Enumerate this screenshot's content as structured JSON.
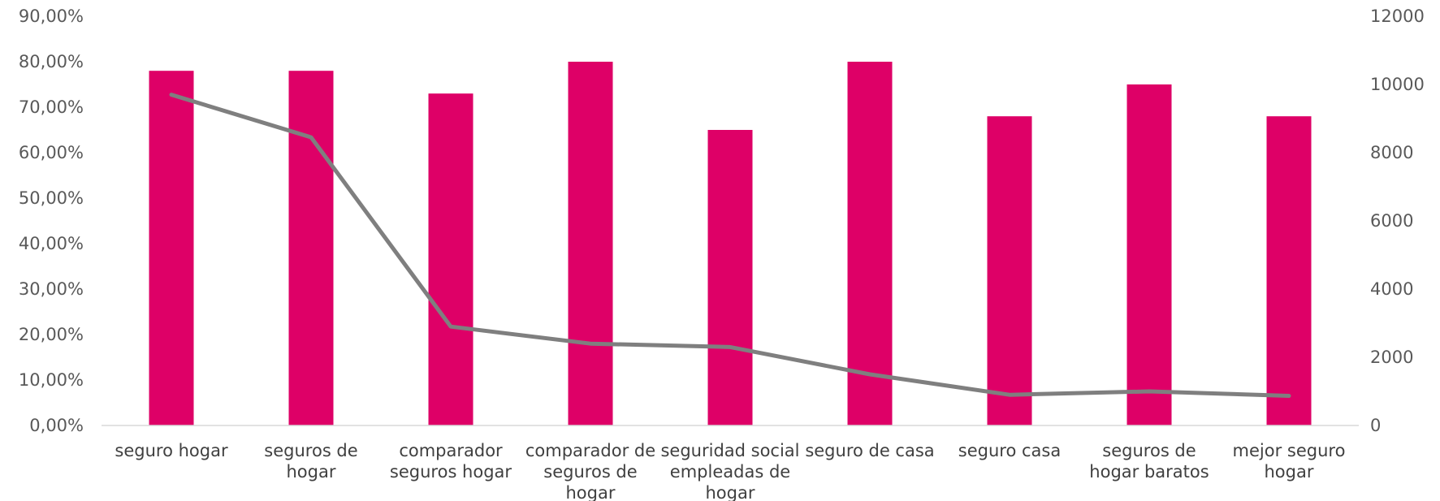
{
  "chart_data": {
    "type": "bar",
    "combo": "bar + line, secondary y axis",
    "categories": [
      "seguro hogar",
      "seguros de hogar",
      "comparador seguros hogar",
      "comparador de seguros de hogar",
      "seguridad social empleadas de hogar",
      "seguro de casa",
      "seguro casa",
      "seguros de hogar baratos",
      "mejor seguro hogar"
    ],
    "category_lines": [
      [
        "seguro hogar"
      ],
      [
        "seguros de",
        "hogar"
      ],
      [
        "comparador",
        "seguros hogar"
      ],
      [
        "comparador de",
        "seguros de",
        "hogar"
      ],
      [
        "seguridad social",
        "empleadas de",
        "hogar"
      ],
      [
        "seguro de casa"
      ],
      [
        "seguro casa"
      ],
      [
        "seguros de",
        "hogar baratos"
      ],
      [
        "mejor seguro",
        "hogar"
      ]
    ],
    "series": [
      {
        "type": "bar",
        "axis": "left",
        "color": "#DE0067",
        "values": [
          78,
          78,
          73,
          80,
          65,
          80,
          68,
          75,
          68
        ]
      },
      {
        "type": "line",
        "axis": "right",
        "color": "#7F7F7F",
        "values": [
          9700,
          8450,
          2900,
          2400,
          2300,
          1500,
          900,
          1000,
          870
        ]
      }
    ],
    "ylim_left": [
      0,
      90
    ],
    "ylim_right": [
      0,
      12000
    ],
    "left_ticks": [
      "0,00%",
      "10,00%",
      "20,00%",
      "30,00%",
      "40,00%",
      "50,00%",
      "60,00%",
      "70,00%",
      "80,00%",
      "90,00%"
    ],
    "right_ticks": [
      "0",
      "2000",
      "4000",
      "6000",
      "8000",
      "10000",
      "12000"
    ],
    "grid": false,
    "legend": "none"
  }
}
